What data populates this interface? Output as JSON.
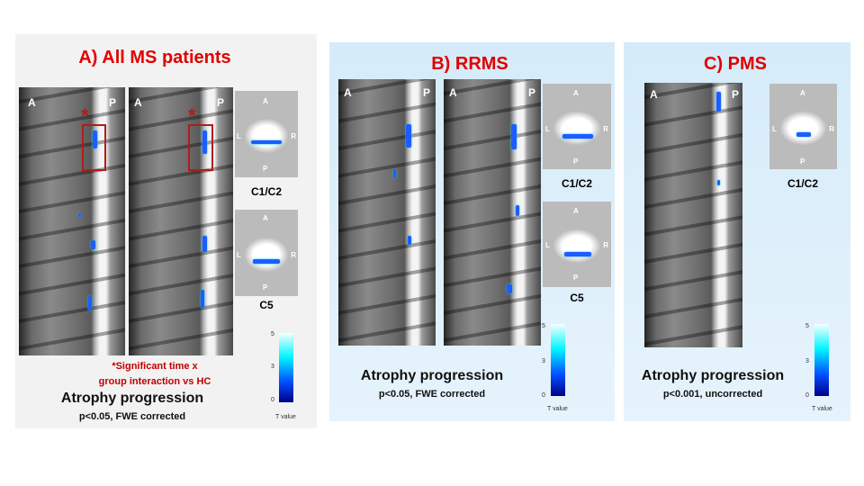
{
  "panel_a": {
    "title": "A) All MS patients",
    "note_line1": "*Significant  time x",
    "note_line2": "group interaction vs HC",
    "heading": "Atrophy progression",
    "stats": "p<0.05, FWE corrected",
    "levels": [
      "C1/C2",
      "C5"
    ],
    "asterisk": "*"
  },
  "panel_b": {
    "title": "B) RRMS",
    "heading": "Atrophy progression",
    "stats": "p<0.05, FWE corrected",
    "levels": [
      "C1/C2",
      "C5"
    ]
  },
  "panel_c": {
    "title": "C) PMS",
    "heading": "Atrophy progression",
    "stats": "p<0.001, uncorrected",
    "levels": [
      "C1/C2"
    ]
  },
  "orientation": {
    "anterior": "A",
    "posterior": "P",
    "left": "L",
    "right": "R"
  },
  "colorbar": {
    "ticks": [
      "5",
      "3",
      "0"
    ],
    "label": "T value",
    "colors": [
      "#f4ffff",
      "#00f5ff",
      "#0050ff",
      "#00008a"
    ]
  },
  "accent_color": "#e00000"
}
